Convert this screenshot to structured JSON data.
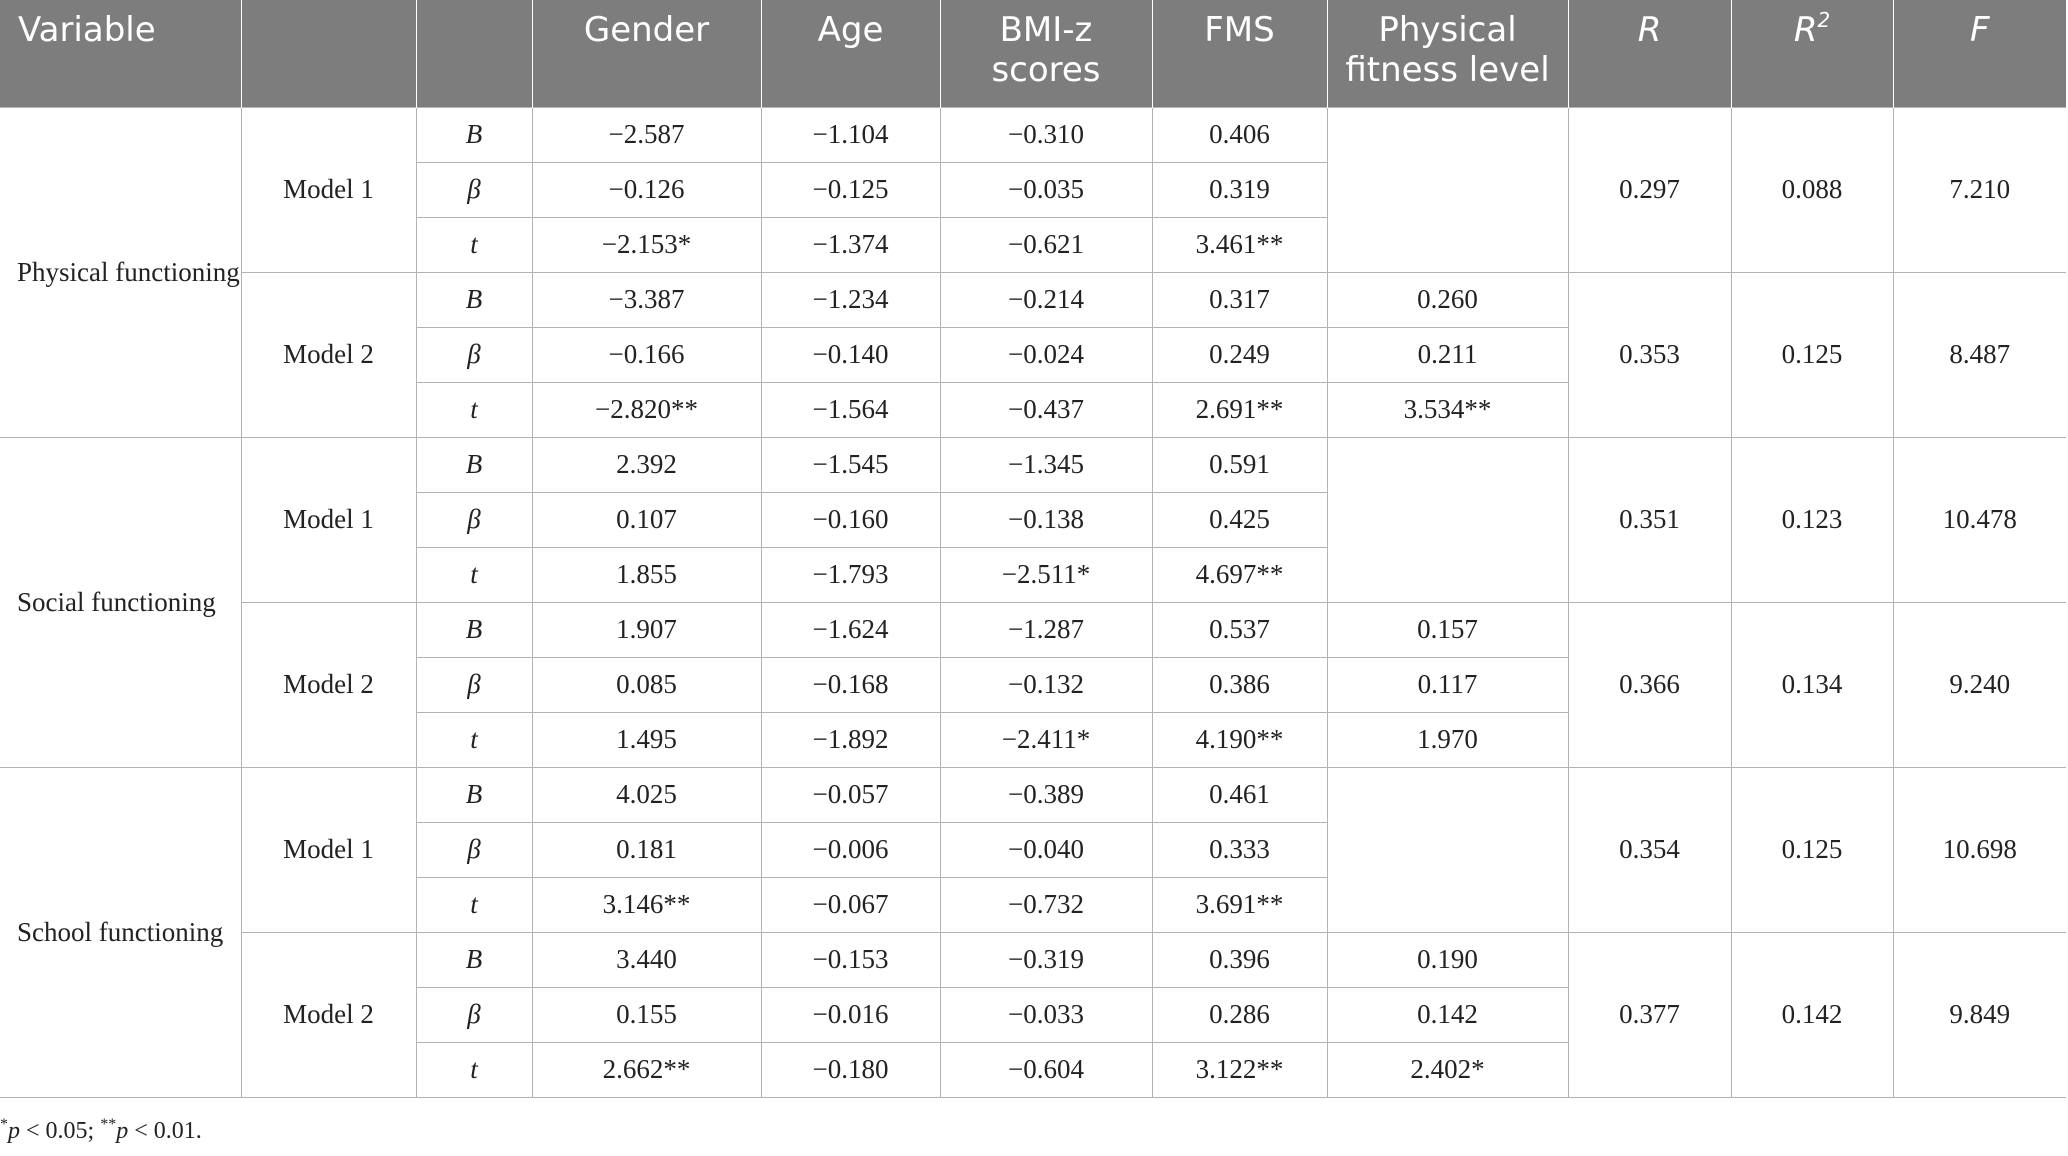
{
  "headers": {
    "variable": "Variable",
    "blank": "",
    "stat": "",
    "gender": "Gender",
    "age": "Age",
    "bmi": "BMI-z scores",
    "fms": "FMS",
    "pfl": "Physical fitness level",
    "r": "R",
    "r2_base": "R",
    "r2_sup": "2",
    "f": "F"
  },
  "groups": [
    {
      "variable": "Physical functioning",
      "models": [
        {
          "label": "Model 1",
          "R": "0.297",
          "R2": "0.088",
          "F": "7.210",
          "rows": [
            {
              "stat": "B",
              "gender": "−2.587",
              "age": "−1.104",
              "bmi": "−0.310",
              "fms": "0.406",
              "pfl": ""
            },
            {
              "stat": "β",
              "gender": "−0.126",
              "age": "−0.125",
              "bmi": "−0.035",
              "fms": "0.319",
              "pfl": ""
            },
            {
              "stat": "t",
              "gender": "−2.153*",
              "age": "−1.374",
              "bmi": "−0.621",
              "fms": "3.461**",
              "pfl": ""
            }
          ]
        },
        {
          "label": "Model 2",
          "R": "0.353",
          "R2": "0.125",
          "F": "8.487",
          "rows": [
            {
              "stat": "B",
              "gender": "−3.387",
              "age": "−1.234",
              "bmi": "−0.214",
              "fms": "0.317",
              "pfl": "0.260"
            },
            {
              "stat": "β",
              "gender": "−0.166",
              "age": "−0.140",
              "bmi": "−0.024",
              "fms": "0.249",
              "pfl": "0.211"
            },
            {
              "stat": "t",
              "gender": "−2.820**",
              "age": "−1.564",
              "bmi": "−0.437",
              "fms": "2.691**",
              "pfl": "3.534**"
            }
          ]
        }
      ]
    },
    {
      "variable": "Social functioning",
      "models": [
        {
          "label": "Model 1",
          "R": "0.351",
          "R2": "0.123",
          "F": "10.478",
          "rows": [
            {
              "stat": "B",
              "gender": "2.392",
              "age": "−1.545",
              "bmi": "−1.345",
              "fms": "0.591",
              "pfl": ""
            },
            {
              "stat": "β",
              "gender": "0.107",
              "age": "−0.160",
              "bmi": "−0.138",
              "fms": "0.425",
              "pfl": ""
            },
            {
              "stat": "t",
              "gender": "1.855",
              "age": "−1.793",
              "bmi": "−2.511*",
              "fms": "4.697**",
              "pfl": ""
            }
          ]
        },
        {
          "label": "Model 2",
          "R": "0.366",
          "R2": "0.134",
          "F": "9.240",
          "rows": [
            {
              "stat": "B",
              "gender": "1.907",
              "age": "−1.624",
              "bmi": "−1.287",
              "fms": "0.537",
              "pfl": "0.157"
            },
            {
              "stat": "β",
              "gender": "0.085",
              "age": "−0.168",
              "bmi": "−0.132",
              "fms": "0.386",
              "pfl": "0.117"
            },
            {
              "stat": "t",
              "gender": "1.495",
              "age": "−1.892",
              "bmi": "−2.411*",
              "fms": "4.190**",
              "pfl": "1.970"
            }
          ]
        }
      ]
    },
    {
      "variable": "School functioning",
      "models": [
        {
          "label": "Model 1",
          "R": "0.354",
          "R2": "0.125",
          "F": "10.698",
          "rows": [
            {
              "stat": "B",
              "gender": "4.025",
              "age": "−0.057",
              "bmi": "−0.389",
              "fms": "0.461",
              "pfl": ""
            },
            {
              "stat": "β",
              "gender": "0.181",
              "age": "−0.006",
              "bmi": "−0.040",
              "fms": "0.333",
              "pfl": ""
            },
            {
              "stat": "t",
              "gender": "3.146**",
              "age": "−0.067",
              "bmi": "−0.732",
              "fms": "3.691**",
              "pfl": ""
            }
          ]
        },
        {
          "label": "Model 2",
          "R": "0.377",
          "R2": "0.142",
          "F": "9.849",
          "rows": [
            {
              "stat": "B",
              "gender": "3.440",
              "age": "−0.153",
              "bmi": "−0.319",
              "fms": "0.396",
              "pfl": "0.190"
            },
            {
              "stat": "β",
              "gender": "0.155",
              "age": "−0.016",
              "bmi": "−0.033",
              "fms": "0.286",
              "pfl": "0.142"
            },
            {
              "stat": "t",
              "gender": "2.662**",
              "age": "−0.180",
              "bmi": "−0.604",
              "fms": "3.122**",
              "pfl": "2.402*"
            }
          ]
        }
      ]
    }
  ],
  "footnote": {
    "sig1_sup": "*",
    "sig1_p": "p",
    "sig1_rest": " < 0.05; ",
    "sig2_sup": "**",
    "sig2_p": "p",
    "sig2_rest": " < 0.01."
  }
}
